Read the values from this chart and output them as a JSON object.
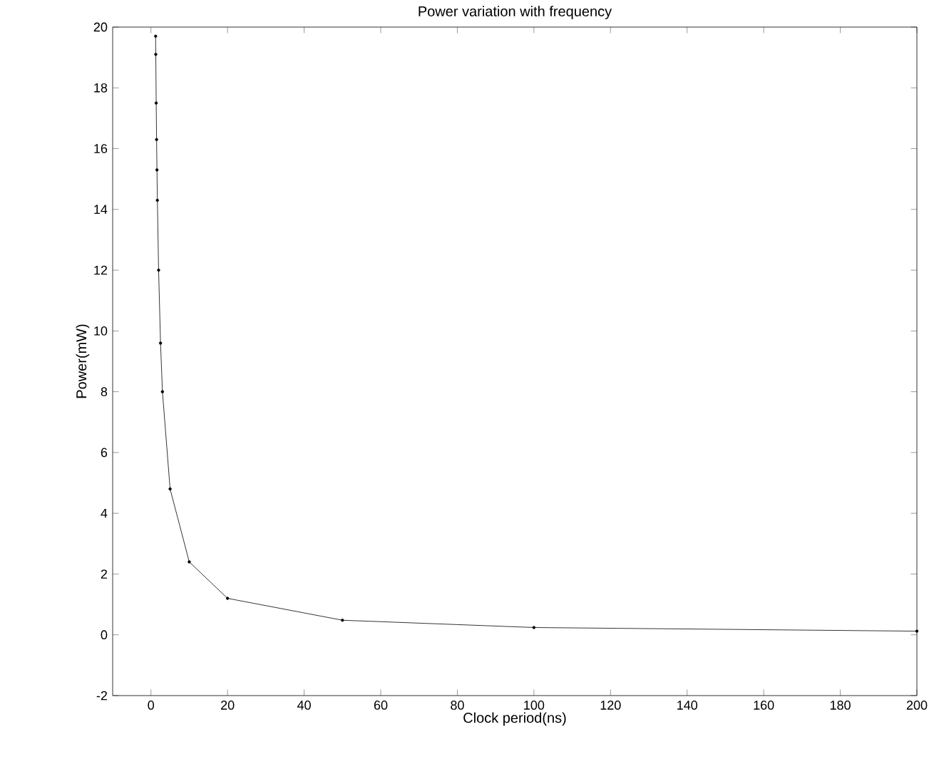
{
  "chart_data": {
    "type": "line",
    "title": "Power variation with frequency",
    "xlabel": "Clock period(ns)",
    "ylabel": "Power(mW)",
    "x": [
      1.22,
      1.26,
      1.37,
      1.47,
      1.57,
      1.68,
      2,
      2.5,
      3,
      5,
      10,
      20,
      50,
      100,
      200
    ],
    "values": [
      19.7,
      19.1,
      17.5,
      16.3,
      15.3,
      14.3,
      12,
      9.6,
      8,
      4.8,
      2.4,
      1.2,
      0.48,
      0.24,
      0.12
    ],
    "color": "#000000",
    "marker": "circle",
    "line_style": "solid",
    "xlim": [
      -10,
      200
    ],
    "ylim": [
      -2,
      20
    ],
    "xticks": [
      0,
      20,
      40,
      60,
      80,
      100,
      120,
      140,
      160,
      180,
      200
    ],
    "yticks": [
      -2,
      0,
      2,
      4,
      6,
      8,
      10,
      12,
      14,
      16,
      18,
      20
    ]
  }
}
